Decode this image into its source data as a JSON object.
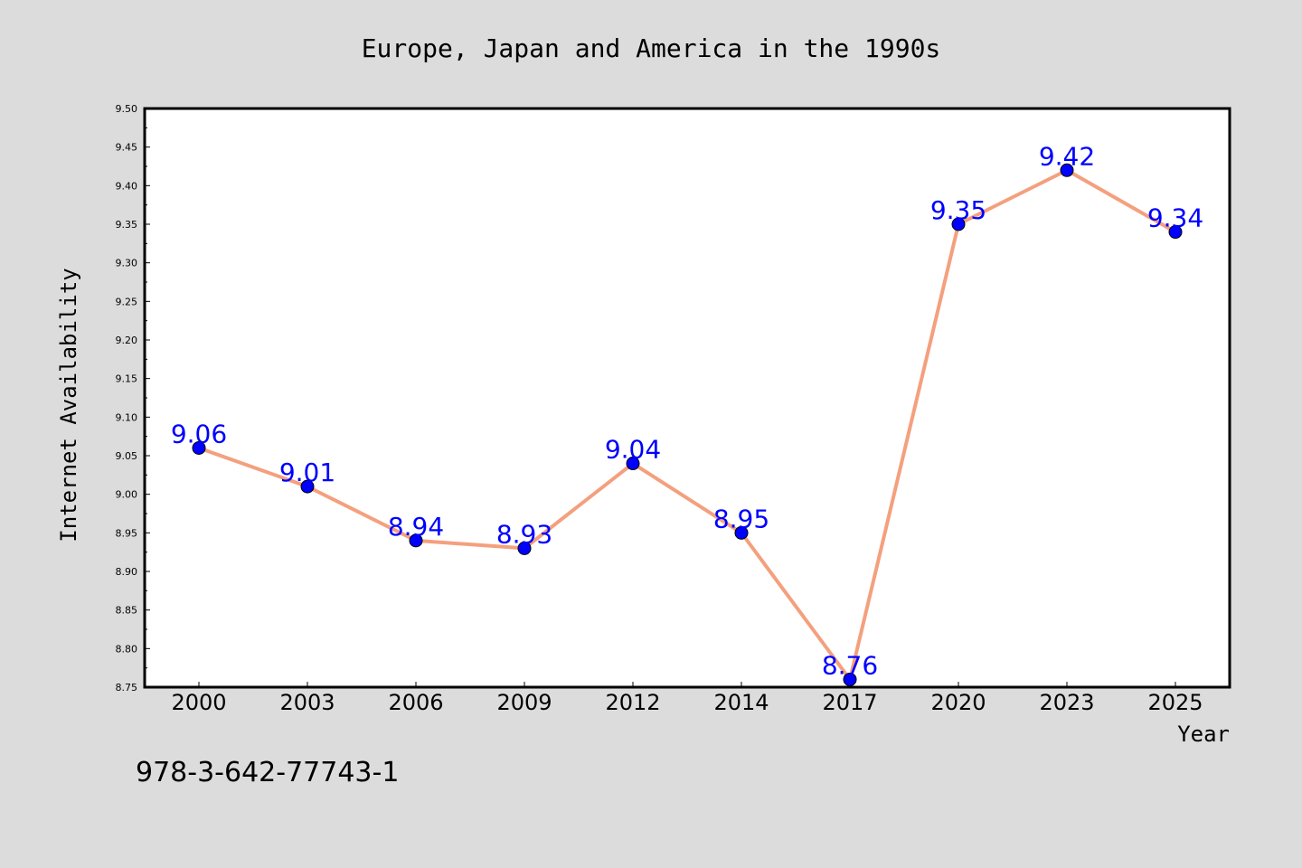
{
  "chart_data": {
    "type": "line",
    "title": "Europe, Japan and America in the 1990s",
    "xlabel": "Year",
    "ylabel": "Internet Availability",
    "categories": [
      "2000",
      "2003",
      "2006",
      "2009",
      "2012",
      "2014",
      "2017",
      "2020",
      "2023",
      "2025"
    ],
    "series": [
      {
        "values": [
          9.06,
          9.01,
          8.94,
          8.93,
          9.04,
          8.95,
          8.76,
          9.35,
          9.42,
          9.34
        ],
        "labels": [
          "9.06",
          "9.01",
          "8.94",
          "8.93",
          "9.04",
          "8.95",
          "8.76",
          "9.35",
          "9.42",
          "9.34"
        ],
        "line_color": "#f4a07e",
        "marker_color": "#0000ff",
        "label_color": "#0000ff"
      }
    ],
    "ylim": [
      8.75,
      9.5
    ],
    "yticks": [
      "8.75",
      "8.80",
      "8.85",
      "8.90",
      "8.95",
      "9.00",
      "9.05",
      "9.10",
      "9.15",
      "9.20",
      "9.25",
      "9.30",
      "9.35",
      "9.40",
      "9.45",
      "9.50"
    ],
    "grid": false,
    "legend": "none"
  },
  "annotation": "978-3-642-77743-1"
}
